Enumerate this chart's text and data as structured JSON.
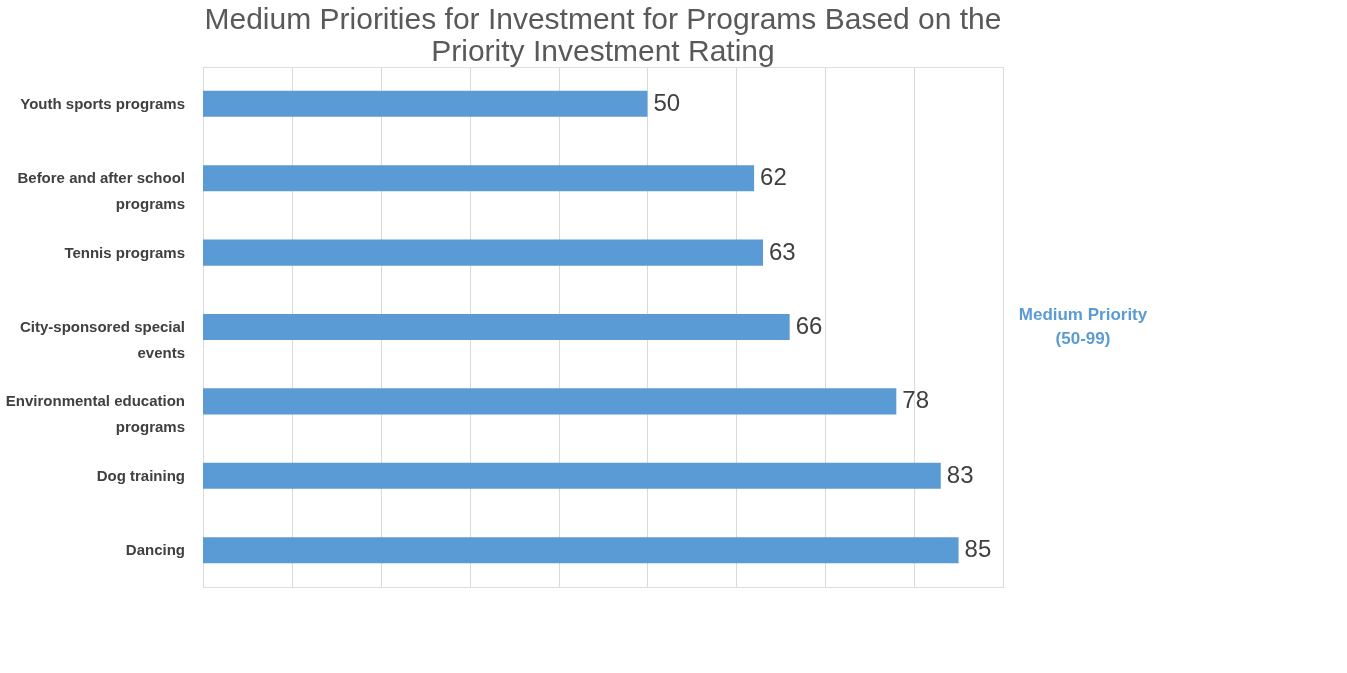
{
  "chart_data": {
    "type": "bar",
    "orientation": "horizontal",
    "title": "Medium Priorities for Investment for Programs Based on the Priority Investment Rating",
    "categories": [
      "Youth sports programs",
      "Before and after school programs",
      "Tennis programs",
      "City-sponsored special events",
      "Environmental education programs",
      "Dog training",
      "Dancing"
    ],
    "values": [
      50,
      62,
      63,
      66,
      78,
      83,
      85
    ],
    "color": "#5b9bd5",
    "xlim": [
      0,
      90
    ],
    "xticks": [
      {
        "value": 0,
        "label": null
      },
      {
        "value": 10,
        "label": null
      },
      {
        "value": 20,
        "label": null
      },
      {
        "value": 30,
        "label": null
      },
      {
        "value": 40,
        "label": null
      },
      {
        "value": 50,
        "label": null
      },
      {
        "value": 60,
        "label": null
      },
      {
        "value": 70,
        "label": null
      },
      {
        "value": 80,
        "label": null
      },
      {
        "value": 90,
        "label": null
      }
    ],
    "grid": "x",
    "tick_labels": "y",
    "data_labels": true,
    "annotations": [
      "Medium Priority",
      "(50-99)"
    ]
  }
}
